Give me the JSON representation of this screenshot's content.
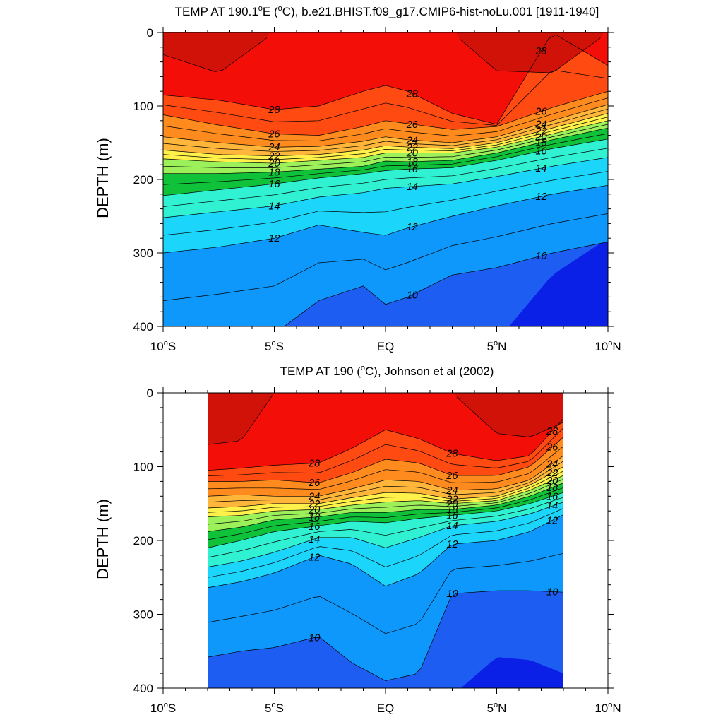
{
  "chart_data": [
    {
      "type": "contour",
      "title": "TEMP AT 190.1°E (°C), b.e21.BHIST.f09_g17.CMIP6-hist-noLu.001 [1911-1940]",
      "title_parts": {
        "before": "TEMP AT 190.1",
        "deg1": "o",
        "mid1": "E (",
        "deg2": "o",
        "after": "C), b.e21.BHIST.f09_g17.CMIP6-hist-noLu.001 [1911-1940]"
      },
      "ylabel": "DEPTH (m)",
      "xlabel": "",
      "xlim": [
        -10,
        10
      ],
      "ylim": [
        400,
        0
      ],
      "data_xlim": [
        -10,
        10
      ],
      "x_ticks": [
        {
          "value": -10,
          "label": "10°S",
          "num": "10",
          "deg": "o",
          "hemi": "S"
        },
        {
          "value": -5,
          "label": "5°S",
          "num": "5",
          "deg": "o",
          "hemi": "S"
        },
        {
          "value": 0,
          "label": "EQ",
          "num": "EQ",
          "deg": "",
          "hemi": ""
        },
        {
          "value": 5,
          "label": "5°N",
          "num": "5",
          "deg": "o",
          "hemi": "N"
        },
        {
          "value": 10,
          "label": "10°N",
          "num": "10",
          "deg": "o",
          "hemi": "N"
        }
      ],
      "y_ticks": [
        0,
        100,
        200,
        300,
        400
      ],
      "y_tick_labels": [
        "0",
        "100",
        "200",
        "300",
        "400"
      ],
      "contour_interval_C": 1,
      "isotherm_depths": {
        "lat": [
          -10,
          -7.5,
          -5,
          -3,
          -1,
          0,
          1,
          3,
          5,
          7.5,
          10
        ],
        "t29": [
          30,
          55,
          0,
          0,
          0,
          0,
          0,
          0,
          52,
          55,
          0
        ],
        "t28": [
          85,
          92,
          105,
          100,
          80,
          72,
          80,
          110,
          125,
          0,
          45
        ],
        "t26": [
          112,
          126,
          138,
          140,
          128,
          120,
          124,
          132,
          128,
          102,
          80
        ],
        "t24": [
          142,
          150,
          156,
          155,
          148,
          142,
          146,
          150,
          142,
          120,
          98
        ],
        "t22": [
          160,
          166,
          168,
          166,
          160,
          154,
          156,
          158,
          150,
          130,
          110
        ],
        "t20": [
          172,
          176,
          178,
          174,
          170,
          164,
          164,
          164,
          156,
          138,
          120
        ],
        "t18": [
          192,
          192,
          190,
          186,
          182,
          175,
          176,
          174,
          164,
          146,
          130
        ],
        "t16": [
          222,
          214,
          206,
          198,
          192,
          188,
          186,
          184,
          174,
          158,
          145
        ],
        "t14": [
          252,
          244,
          236,
          224,
          218,
          212,
          210,
          206,
          196,
          182,
          170
        ],
        "t12": [
          300,
          292,
          280,
          262,
          272,
          276,
          266,
          250,
          236,
          220,
          208
        ],
        "t10": [
          430,
          420,
          410,
          365,
          345,
          370,
          360,
          330,
          320,
          300,
          285
        ],
        "t9": [
          480,
          480,
          480,
          480,
          480,
          480,
          480,
          470,
          420,
          330,
          280
        ]
      },
      "contour_labels": [
        "28",
        "26",
        "24",
        "22",
        "20",
        "18",
        "16",
        "14",
        "12",
        "10"
      ]
    },
    {
      "type": "contour",
      "title": "TEMP AT 190 (°C), Johnson et al (2002)",
      "title_parts": {
        "before": "TEMP AT 190 (",
        "deg1": "o",
        "mid1": "C), Johnson et al (2002)",
        "deg2": "",
        "after": ""
      },
      "ylabel": "DEPTH (m)",
      "xlabel": "",
      "xlim": [
        -10,
        10
      ],
      "ylim": [
        400,
        0
      ],
      "data_xlim": [
        -8,
        8
      ],
      "x_ticks": [
        {
          "value": -10,
          "label": "10°S",
          "num": "10",
          "deg": "o",
          "hemi": "S"
        },
        {
          "value": -5,
          "label": "5°S",
          "num": "5",
          "deg": "o",
          "hemi": "S"
        },
        {
          "value": 0,
          "label": "EQ",
          "num": "EQ",
          "deg": "",
          "hemi": ""
        },
        {
          "value": 5,
          "label": "5°N",
          "num": "5",
          "deg": "o",
          "hemi": "N"
        },
        {
          "value": 10,
          "label": "10°N",
          "num": "10",
          "deg": "o",
          "hemi": "N"
        }
      ],
      "y_ticks": [
        0,
        100,
        200,
        300,
        400
      ],
      "y_tick_labels": [
        "0",
        "100",
        "200",
        "300",
        "400"
      ],
      "contour_interval_C": 1,
      "isotherm_depths": {
        "lat": [
          -8,
          -6.5,
          -5,
          -3,
          -1.5,
          0,
          1.5,
          3,
          5,
          6.5,
          8
        ],
        "t29": [
          70,
          65,
          0,
          0,
          0,
          0,
          0,
          0,
          55,
          60,
          40
        ],
        "t28": [
          105,
          102,
          98,
          95,
          75,
          50,
          62,
          82,
          92,
          85,
          35
        ],
        "t26": [
          120,
          120,
          118,
          122,
          108,
          90,
          95,
          112,
          112,
          100,
          60
        ],
        "t24": [
          140,
          138,
          140,
          140,
          130,
          118,
          120,
          132,
          130,
          118,
          85
        ],
        "t22": [
          156,
          154,
          150,
          150,
          142,
          135,
          136,
          144,
          140,
          125,
          100
        ],
        "t20": [
          168,
          166,
          160,
          158,
          152,
          148,
          146,
          150,
          146,
          132,
          112
        ],
        "t18": [
          188,
          182,
          172,
          168,
          162,
          162,
          158,
          158,
          152,
          140,
          122
        ],
        "t16": [
          210,
          200,
          188,
          180,
          174,
          176,
          170,
          166,
          160,
          150,
          135
        ],
        "t14": [
          236,
          228,
          216,
          196,
          196,
          210,
          196,
          180,
          174,
          164,
          148
        ],
        "t12": [
          264,
          256,
          244,
          220,
          232,
          262,
          245,
          205,
          200,
          188,
          165
        ],
        "t10": [
          358,
          350,
          345,
          330,
          366,
          390,
          380,
          272,
          268,
          268,
          270
        ],
        "t9": [
          480,
          480,
          480,
          480,
          480,
          480,
          480,
          410,
          358,
          362,
          380
        ]
      },
      "contour_labels": [
        "28",
        "26",
        "24",
        "22",
        "20",
        "18",
        "16",
        "14",
        "12",
        "10"
      ]
    }
  ]
}
